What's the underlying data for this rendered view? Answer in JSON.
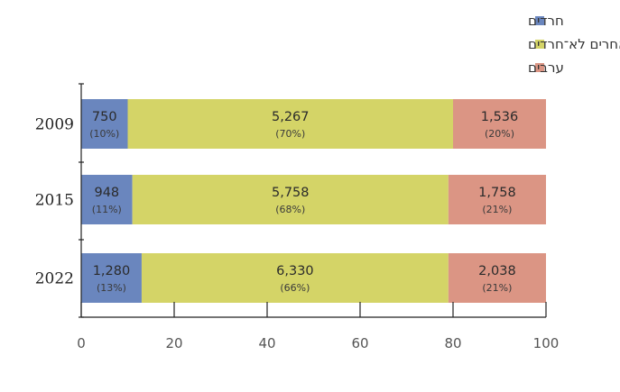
{
  "chart_data": {
    "type": "bar",
    "orientation": "horizontal",
    "stacked": true,
    "categories": [
      "2009",
      "2015",
      "2022"
    ],
    "series": [
      {
        "name": "חרדים",
        "color": "#6a86be",
        "percent": [
          10,
          11,
          13
        ],
        "counts": [
          "750",
          "948",
          "1,280"
        ],
        "pct_labels": [
          "(10%)",
          "(11%)",
          "(13%)"
        ]
      },
      {
        "name": "יהודים ואחרים לא־חרדים",
        "color": "#d4d467",
        "percent": [
          70,
          68,
          66
        ],
        "counts": [
          "5,267",
          "5,758",
          "6,330"
        ],
        "pct_labels": [
          "(70%)",
          "(68%)",
          "(66%)"
        ]
      },
      {
        "name": "ערבים",
        "color": "#db9584",
        "percent": [
          20,
          21,
          21
        ],
        "counts": [
          "1,536",
          "1,758",
          "2,038"
        ],
        "pct_labels": [
          "(20%)",
          "(21%)",
          "(21%)"
        ]
      }
    ],
    "xlim": [
      0,
      100
    ],
    "xticks": [
      "0",
      "20",
      "40",
      "60",
      "80",
      "100"
    ],
    "grid": false,
    "legend_position": "top-right"
  }
}
